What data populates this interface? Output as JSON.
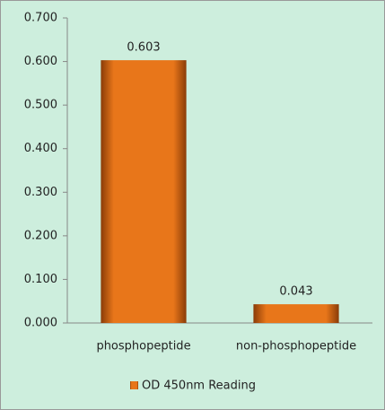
{
  "chart_data": {
    "type": "bar",
    "categories": [
      "phosphopeptide",
      "non-phosphopeptide"
    ],
    "series": [
      {
        "name": "OD 450nm Reading",
        "color": "#e8761a",
        "values": [
          0.603,
          0.043
        ]
      }
    ],
    "ylim": [
      0,
      0.7
    ],
    "yticks": [
      {
        "value": 0,
        "label": "0.000"
      },
      {
        "value": 0.1,
        "label": "0.100"
      },
      {
        "value": 0.2,
        "label": "0.200"
      },
      {
        "value": 0.3,
        "label": "0.300"
      },
      {
        "value": 0.4,
        "label": "0.400"
      },
      {
        "value": 0.5,
        "label": "0.500"
      },
      {
        "value": 0.6,
        "label": "0.600"
      },
      {
        "value": 0.7,
        "label": "0.700"
      }
    ],
    "grid": false,
    "legend": "bottom"
  }
}
